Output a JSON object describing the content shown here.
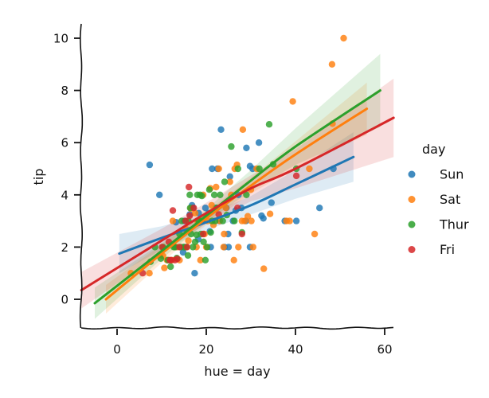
{
  "chart_data": {
    "type": "scatter",
    "title": "",
    "xlabel": "hue = day",
    "ylabel": "tip",
    "xlim": [
      -8,
      62
    ],
    "ylim": [
      -1.2,
      10.6
    ],
    "xticks": [
      0,
      20,
      40,
      60
    ],
    "yticks": [
      0,
      2,
      4,
      6,
      8,
      10
    ],
    "grid": false,
    "legend": {
      "title": "day",
      "placement": "right"
    },
    "series": [
      {
        "name": "Sun",
        "color": "#1f77b4",
        "points": [
          [
            7.3,
            5.15
          ],
          [
            9.5,
            4.0
          ],
          [
            13.2,
            2.95
          ],
          [
            15.1,
            3.0
          ],
          [
            16.3,
            3.25
          ],
          [
            17.0,
            3.5
          ],
          [
            17.4,
            1.0
          ],
          [
            18.2,
            2.3
          ],
          [
            19.8,
            3.5
          ],
          [
            20.5,
            3.3
          ],
          [
            21.0,
            2.0
          ],
          [
            21.3,
            5.0
          ],
          [
            22.5,
            5.0
          ],
          [
            23.0,
            3.0
          ],
          [
            23.3,
            6.5
          ],
          [
            24.1,
            2.0
          ],
          [
            24.5,
            3.5
          ],
          [
            25.0,
            2.0
          ],
          [
            25.3,
            4.7
          ],
          [
            26.6,
            3.4
          ],
          [
            27.2,
            4.0
          ],
          [
            28.9,
            3.0
          ],
          [
            29.0,
            5.8
          ],
          [
            29.8,
            5.1
          ],
          [
            30.4,
            5.0
          ],
          [
            31.8,
            6.0
          ],
          [
            32.4,
            3.2
          ],
          [
            32.8,
            3.1
          ],
          [
            34.6,
            3.7
          ],
          [
            37.6,
            3.0
          ],
          [
            40.2,
            3.0
          ],
          [
            45.4,
            3.5
          ],
          [
            48.5,
            5.0
          ],
          [
            15.0,
            2.0
          ],
          [
            16.8,
            3.6
          ],
          [
            18.3,
            3.3
          ],
          [
            22.1,
            3.5
          ],
          [
            26.0,
            3.0
          ],
          [
            20.8,
            2.6
          ],
          [
            24.9,
            2.5
          ],
          [
            27.9,
            3.5
          ],
          [
            29.8,
            2.0
          ],
          [
            14.8,
            1.8
          ]
        ]
      },
      {
        "name": "Sat",
        "color": "#ff7f0e",
        "points": [
          [
            3.1,
            1.0
          ],
          [
            7.25,
            1.0
          ],
          [
            9.6,
            1.7
          ],
          [
            10.3,
            1.66
          ],
          [
            11.2,
            1.5
          ],
          [
            12.3,
            1.5
          ],
          [
            13.4,
            2.0
          ],
          [
            14.0,
            1.5
          ],
          [
            15.5,
            2.0
          ],
          [
            16.0,
            2.24
          ],
          [
            16.5,
            3.48
          ],
          [
            17.5,
            3.3
          ],
          [
            18.0,
            3.0
          ],
          [
            18.7,
            1.5
          ],
          [
            19.3,
            4.0
          ],
          [
            20.0,
            2.0
          ],
          [
            20.3,
            3.0
          ],
          [
            20.9,
            4.25
          ],
          [
            21.6,
            2.85
          ],
          [
            22.2,
            4.3
          ],
          [
            23.0,
            3.0
          ],
          [
            23.9,
            2.0
          ],
          [
            24.4,
            3.5
          ],
          [
            25.6,
            4.0
          ],
          [
            26.4,
            5.0
          ],
          [
            26.9,
            5.15
          ],
          [
            27.2,
            2.0
          ],
          [
            28.0,
            3.0
          ],
          [
            28.2,
            6.5
          ],
          [
            28.6,
            3.0
          ],
          [
            29.3,
            3.18
          ],
          [
            30.1,
            3.0
          ],
          [
            30.5,
            2.0
          ],
          [
            31.3,
            5.0
          ],
          [
            32.9,
            1.17
          ],
          [
            34.3,
            3.27
          ],
          [
            38.0,
            3.0
          ],
          [
            38.7,
            3.0
          ],
          [
            39.4,
            7.58
          ],
          [
            43.1,
            5.0
          ],
          [
            44.3,
            2.5
          ],
          [
            48.2,
            9.0
          ],
          [
            50.8,
            10.0
          ],
          [
            48.3,
            6.73
          ],
          [
            26.2,
            1.5
          ],
          [
            22.8,
            5.0
          ],
          [
            25.3,
            4.5
          ],
          [
            15.4,
            2.7
          ],
          [
            17.8,
            2.0
          ],
          [
            12.5,
            3.0
          ],
          [
            10.6,
            1.2
          ],
          [
            19.6,
            2.5
          ],
          [
            30.0,
            4.2
          ],
          [
            24.0,
            2.5
          ],
          [
            21.2,
            3.6
          ]
        ]
      },
      {
        "name": "Thur",
        "color": "#2ca02c",
        "points": [
          [
            7.5,
            1.44
          ],
          [
            8.5,
            2.0
          ],
          [
            9.8,
            1.56
          ],
          [
            10.3,
            2.0
          ],
          [
            11.4,
            1.5
          ],
          [
            12.0,
            1.25
          ],
          [
            12.7,
            2.0
          ],
          [
            13.0,
            2.0
          ],
          [
            13.4,
            1.58
          ],
          [
            14.0,
            2.5
          ],
          [
            14.3,
            2.0
          ],
          [
            15.0,
            2.0
          ],
          [
            15.4,
            2.0
          ],
          [
            16.0,
            3.0
          ],
          [
            16.3,
            4.0
          ],
          [
            16.6,
            2.5
          ],
          [
            17.0,
            2.0
          ],
          [
            17.5,
            2.2
          ],
          [
            18.0,
            4.0
          ],
          [
            18.3,
            3.0
          ],
          [
            18.6,
            4.0
          ],
          [
            19.0,
            3.0
          ],
          [
            19.4,
            2.2
          ],
          [
            19.8,
            1.5
          ],
          [
            20.2,
            2.0
          ],
          [
            20.7,
            4.2
          ],
          [
            21.0,
            2.56
          ],
          [
            21.3,
            3.0
          ],
          [
            21.8,
            4.0
          ],
          [
            22.0,
            3.0
          ],
          [
            22.4,
            3.5
          ],
          [
            23.1,
            4.0
          ],
          [
            23.7,
            3.0
          ],
          [
            24.1,
            4.5
          ],
          [
            24.6,
            3.23
          ],
          [
            25.6,
            5.85
          ],
          [
            26.3,
            3.0
          ],
          [
            27.1,
            5.0
          ],
          [
            28.0,
            2.56
          ],
          [
            29.0,
            4.0
          ],
          [
            31.9,
            5.0
          ],
          [
            34.1,
            6.7
          ],
          [
            35.0,
            5.17
          ],
          [
            40.2,
            5.0
          ],
          [
            16.4,
            3.5
          ],
          [
            17.8,
            2.47
          ],
          [
            18.8,
            2.5
          ],
          [
            19.0,
            3.96
          ],
          [
            15.9,
            1.68
          ],
          [
            14.5,
            3.0
          ]
        ]
      },
      {
        "name": "Fri",
        "color": "#d62728",
        "points": [
          [
            5.75,
            1.0
          ],
          [
            10.1,
            2.0
          ],
          [
            11.8,
            1.5
          ],
          [
            12.1,
            1.5
          ],
          [
            12.5,
            3.4
          ],
          [
            13.0,
            1.5
          ],
          [
            13.5,
            1.55
          ],
          [
            14.0,
            2.0
          ],
          [
            15.4,
            3.0
          ],
          [
            15.7,
            2.0
          ],
          [
            16.1,
            4.3
          ],
          [
            16.3,
            3.2
          ],
          [
            17.2,
            3.5
          ],
          [
            19.3,
            2.5
          ],
          [
            22.8,
            3.25
          ],
          [
            27.0,
            3.5
          ],
          [
            28.0,
            2.5
          ],
          [
            40.2,
            4.73
          ],
          [
            11.6,
            2.2
          ]
        ]
      }
    ],
    "fit_lines": [
      {
        "name": "Sun",
        "color": "#1f77b4",
        "x": [
          0.5,
          10,
          20,
          30,
          40,
          53
        ],
        "y": [
          1.75,
          2.35,
          2.95,
          3.6,
          4.4,
          5.45
        ],
        "band": [
          0.75,
          0.45,
          0.3,
          0.35,
          0.55,
          0.95
        ]
      },
      {
        "name": "Sat",
        "color": "#ff7f0e",
        "x": [
          -2.5,
          10,
          20,
          30,
          40,
          56
        ],
        "y": [
          0.0,
          1.75,
          3.1,
          4.35,
          5.55,
          7.3
        ],
        "band": [
          0.55,
          0.35,
          0.25,
          0.3,
          0.5,
          1.0
        ]
      },
      {
        "name": "Thur",
        "color": "#2ca02c",
        "x": [
          -5,
          10,
          20,
          30,
          40,
          59
        ],
        "y": [
          -0.15,
          1.85,
          3.2,
          4.55,
          5.85,
          8.0
        ],
        "band": [
          0.6,
          0.3,
          0.25,
          0.4,
          0.7,
          1.4
        ]
      },
      {
        "name": "Fri",
        "color": "#d62728",
        "x": [
          -8,
          10,
          20,
          30,
          40,
          62
        ],
        "y": [
          0.35,
          2.25,
          3.3,
          4.25,
          5.0,
          6.95
        ],
        "band": [
          0.7,
          0.45,
          0.4,
          0.5,
          0.75,
          1.5
        ]
      }
    ]
  }
}
